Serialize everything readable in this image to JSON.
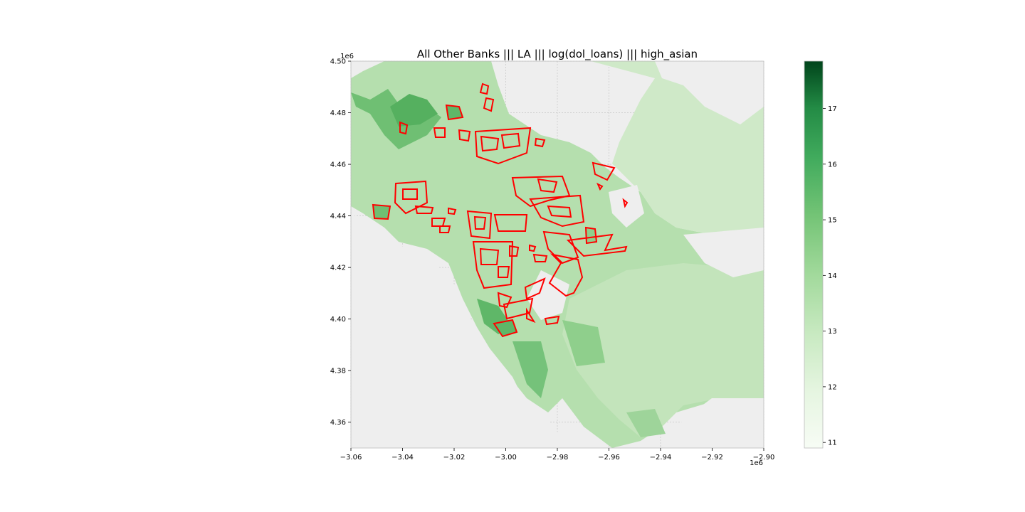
{
  "title": "All Other Banks ||| LA ||| log(dol_loans) ||| high_asian",
  "axes": {
    "x_range": [
      -3.06,
      -2.9
    ],
    "y_range": [
      4.35,
      4.5
    ],
    "x_ticks": [
      "−3.06",
      "−3.04",
      "−3.02",
      "−3.00",
      "−2.98",
      "−2.96",
      "−2.94",
      "−2.92",
      "−2.90"
    ],
    "y_ticks": [
      "4.36",
      "4.38",
      "4.40",
      "4.42",
      "4.44",
      "4.46",
      "4.48",
      "4.50"
    ],
    "x_offset": "1e6",
    "y_offset": "1e6",
    "grid": true,
    "background": "#eeeeee"
  },
  "colorbar": {
    "ticks": [
      "11",
      "12",
      "13",
      "14",
      "15",
      "16",
      "17"
    ],
    "range": [
      10.9,
      17.85
    ],
    "colormap": "Greens",
    "position": "right"
  },
  "highlight_color": "#ff0000",
  "colors": {
    "light": "#e0f3dc",
    "mid": "#a8d9a3",
    "dark": "#41ab5d",
    "darkest": "#00441b"
  }
}
